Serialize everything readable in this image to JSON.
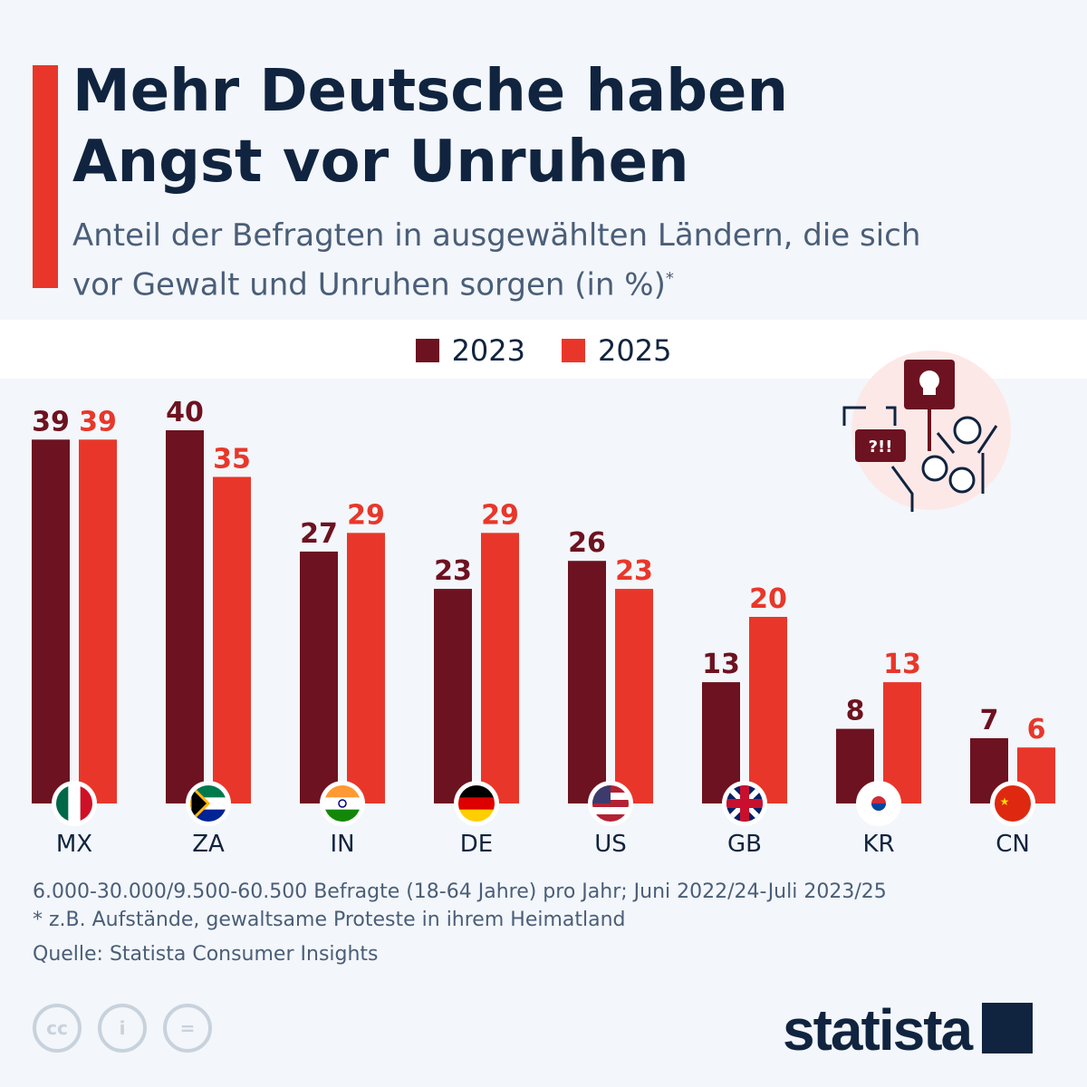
{
  "header": {
    "title": "Mehr Deutsche haben Angst vor Unruhen",
    "subtitle": "Anteil der Befragten in ausgewählten Ländern, die sich vor Gewalt und Unruhen sorgen (in %)",
    "subtitle_mark": "*"
  },
  "colors": {
    "s2023": "#6d1220",
    "s2025": "#e8372a",
    "accent": "#e8372a",
    "title": "#10243f"
  },
  "chart_data": {
    "type": "bar",
    "title": "Mehr Deutsche haben Angst vor Unruhen",
    "categories": [
      "MX",
      "ZA",
      "IN",
      "DE",
      "US",
      "GB",
      "KR",
      "CN"
    ],
    "series": [
      {
        "name": "2023",
        "values": [
          39,
          40,
          27,
          23,
          26,
          13,
          8,
          7
        ]
      },
      {
        "name": "2025",
        "values": [
          39,
          35,
          29,
          29,
          23,
          20,
          13,
          6
        ]
      }
    ],
    "ylim": [
      0,
      40
    ],
    "grid": false,
    "legend": "top-center",
    "data_labels": true
  },
  "footer": {
    "note1": "6.000-30.000/9.500-60.500 Befragte (18-64 Jahre) pro Jahr; Juni 2022/24-Juli 2023/25",
    "note2": "* z.B. Aufstände, gewaltsame Proteste in ihrem Heimatland",
    "source": "Quelle: Statista Consumer Insights",
    "license_icons": [
      "cc-icon",
      "attribution-icon",
      "no-derivatives-icon"
    ],
    "logo": "statista"
  },
  "illustration": {
    "sign_text": "?!!",
    "icon": "protest-skull-sign-icon"
  }
}
